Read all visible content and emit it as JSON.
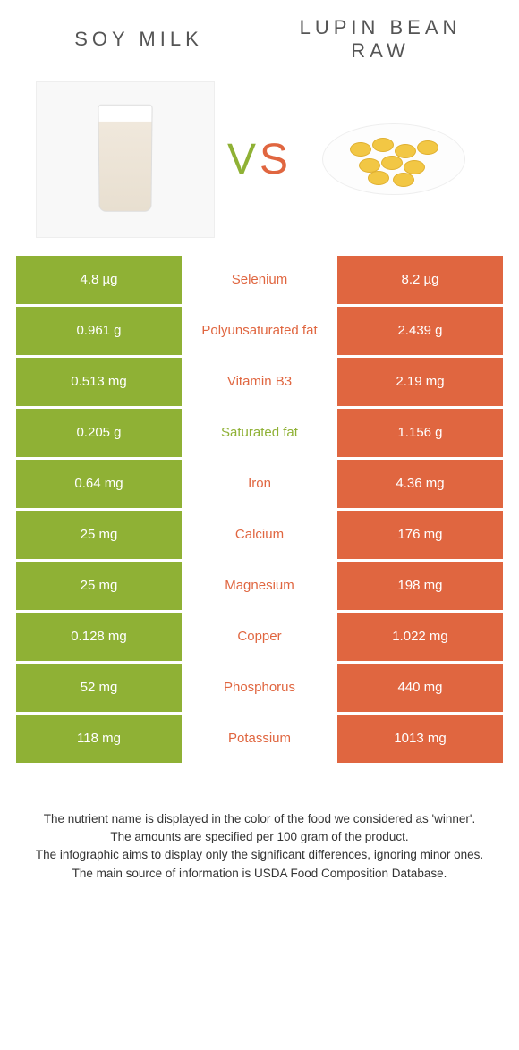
{
  "header": {
    "left_title": "SOY MILK",
    "right_title_line1": "LUPIN BEAN",
    "right_title_line2": "RAW",
    "vs_v": "V",
    "vs_s": "S"
  },
  "colors": {
    "left": "#8fb135",
    "right": "#e06640"
  },
  "rows": [
    {
      "left": "4.8 µg",
      "label": "Selenium",
      "right": "8.2 µg",
      "winner": "right"
    },
    {
      "left": "0.961 g",
      "label": "Polyunsaturated fat",
      "right": "2.439 g",
      "winner": "right"
    },
    {
      "left": "0.513 mg",
      "label": "Vitamin B3",
      "right": "2.19 mg",
      "winner": "right"
    },
    {
      "left": "0.205 g",
      "label": "Saturated fat",
      "right": "1.156 g",
      "winner": "left"
    },
    {
      "left": "0.64 mg",
      "label": "Iron",
      "right": "4.36 mg",
      "winner": "right"
    },
    {
      "left": "25 mg",
      "label": "Calcium",
      "right": "176 mg",
      "winner": "right"
    },
    {
      "left": "25 mg",
      "label": "Magnesium",
      "right": "198 mg",
      "winner": "right"
    },
    {
      "left": "0.128 mg",
      "label": "Copper",
      "right": "1.022 mg",
      "winner": "right"
    },
    {
      "left": "52 mg",
      "label": "Phosphorus",
      "right": "440 mg",
      "winner": "right"
    },
    {
      "left": "118 mg",
      "label": "Potassium",
      "right": "1013 mg",
      "winner": "right"
    }
  ],
  "footer": {
    "line1": "The nutrient name is displayed in the color of the food we considered as 'winner'.",
    "line2": "The amounts are specified per 100 gram of the product.",
    "line3": "The infographic aims to display only the significant differences, ignoring minor ones.",
    "line4": "The main source of information is USDA Food Composition Database."
  }
}
